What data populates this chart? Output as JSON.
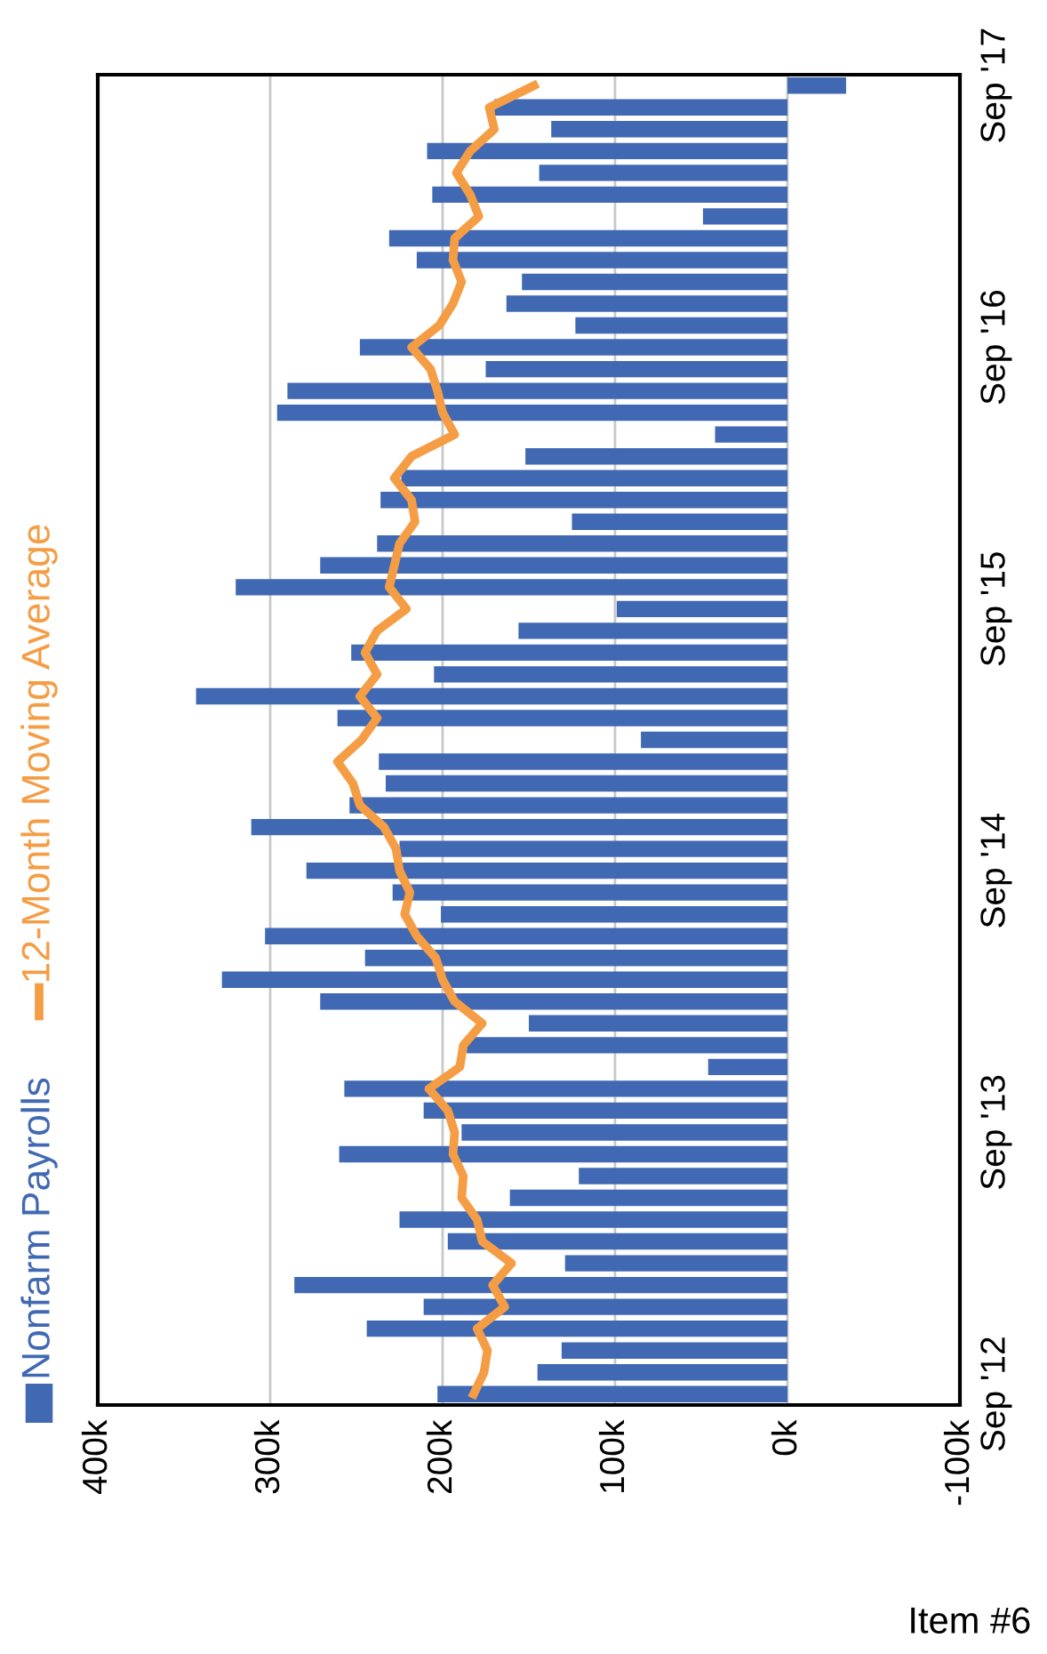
{
  "chart_data": {
    "type": "bar",
    "orientation": "horizontal",
    "categories": [
      "Sep '17",
      null,
      null,
      null,
      null,
      null,
      null,
      null,
      null,
      null,
      null,
      null,
      "Sep '16",
      null,
      null,
      null,
      null,
      null,
      null,
      null,
      null,
      null,
      null,
      null,
      "Sep '15",
      null,
      null,
      null,
      null,
      null,
      null,
      null,
      null,
      null,
      null,
      null,
      "Sep '14",
      null,
      null,
      null,
      null,
      null,
      null,
      null,
      null,
      null,
      null,
      null,
      "Sep '13",
      null,
      null,
      null,
      null,
      null,
      null,
      null,
      null,
      null,
      null,
      null,
      "Sep '12"
    ],
    "series": [
      {
        "name": "Nonfarm Payrolls",
        "type": "bar",
        "color": "#4169b3",
        "values": [
          -34000,
          170000,
          137000,
          209000,
          144000,
          206000,
          49000,
          231000,
          215000,
          154000,
          163000,
          123000,
          248000,
          175000,
          290000,
          296000,
          42000,
          152000,
          224000,
          236000,
          125000,
          238000,
          271000,
          320000,
          99000,
          156000,
          253000,
          205000,
          343000,
          261000,
          85000,
          237000,
          233000,
          254000,
          311000,
          225000,
          279000,
          229000,
          201000,
          303000,
          245000,
          328000,
          271000,
          150000,
          186000,
          46000,
          257000,
          211000,
          189000,
          260000,
          121000,
          161000,
          225000,
          197000,
          129000,
          286000,
          211000,
          244000,
          131000,
          145000,
          203000
        ]
      },
      {
        "name": "12-Month Moving Average",
        "type": "line",
        "color": "#f59d45",
        "values": [
          147000,
          173000,
          170000,
          184000,
          192000,
          184000,
          179000,
          193000,
          194000,
          189000,
          194000,
          202000,
          218000,
          207000,
          203000,
          200000,
          193000,
          218000,
          228000,
          218000,
          216000,
          225000,
          228000,
          231000,
          221000,
          238000,
          245000,
          238000,
          248000,
          238000,
          247000,
          261000,
          252000,
          248000,
          234000,
          227000,
          225000,
          219000,
          222000,
          215000,
          204000,
          200000,
          193000,
          177000,
          188000,
          190000,
          208000,
          197000,
          193000,
          194000,
          188000,
          189000,
          180000,
          177000,
          160000,
          171000,
          164000,
          180000,
          174000,
          176000,
          182000
        ]
      }
    ],
    "xlim": [
      400000,
      -100000
    ],
    "xticks": [
      {
        "value": 400000,
        "label": "400k"
      },
      {
        "value": 300000,
        "label": "300k"
      },
      {
        "value": 200000,
        "label": "200k"
      },
      {
        "value": 100000,
        "label": "100k"
      },
      {
        "value": 0,
        "label": "0k"
      },
      {
        "value": -100000,
        "label": "-100k"
      }
    ],
    "grid": "x",
    "legend": "left",
    "line_style": "solid",
    "marker": "none",
    "annotations": [
      "Item #6"
    ]
  }
}
